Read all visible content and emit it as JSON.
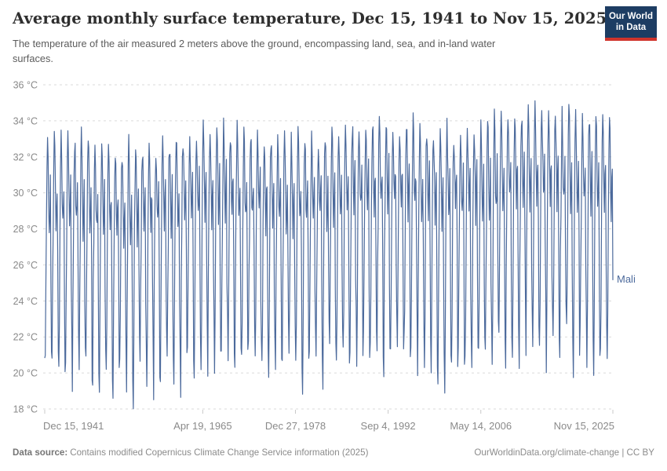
{
  "header": {
    "title": "Average monthly surface temperature, Dec 15, 1941 to Nov 15, 2025",
    "subtitle": "The temperature of the air measured 2 meters above the ground, encompassing land, sea, and in-land water surfaces."
  },
  "logo": {
    "line1": "Our World",
    "line2": "in Data",
    "bg_color": "#1d3d63",
    "accent_color": "#d0342c"
  },
  "chart_data": {
    "type": "line",
    "title": "Average monthly surface temperature, Dec 15, 1941 to Nov 15, 2025",
    "entity": "Mali",
    "unit": "°C",
    "xlabel": "",
    "ylabel": "",
    "grid": true,
    "legend_position": "right-of-line-end",
    "ylim": [
      17.4,
      36.2
    ],
    "y_ticks": [
      18,
      20,
      22,
      24,
      26,
      28,
      30,
      32,
      34,
      36
    ],
    "y_tick_suffix": " °C",
    "x_ticks": [
      {
        "label": "Dec 15, 1941",
        "year": 1941.958
      },
      {
        "label": "Apr 19, 1965",
        "year": 1965.3
      },
      {
        "label": "Dec 27, 1978",
        "year": 1978.99
      },
      {
        "label": "Sep 4, 1992",
        "year": 1992.68
      },
      {
        "label": "May 14, 2006",
        "year": 2006.37
      },
      {
        "label": "Nov 15, 2025",
        "year": 2025.873
      }
    ],
    "series": [
      {
        "name": "Mali",
        "color": "#4C6A9C",
        "start_month": "Dec 1941",
        "end_month": "Nov 2025",
        "points_per_year": 12,
        "n_points": 1008,
        "monthly_climatology_c": [
          19.6,
          23.5,
          27.5,
          31.0,
          32.6,
          31.8,
          29.3,
          27.8,
          29.0,
          30.2,
          25.0,
          21.0
        ],
        "warming_trend_c": 1.7,
        "variability_warm_c": 0.8,
        "variability_cold_c": 1.6,
        "decadal_variability_c": 0.4,
        "observed_min_c": 17.5,
        "observed_max_c": 35.6
      }
    ],
    "axis_color": "#8a8a8a",
    "gridline_color": "#dadada"
  },
  "footer": {
    "datasource_label": "Data source:",
    "datasource_text": "Contains modified Copernicus Climate Change Service information (2025)",
    "attribution": "OurWorldinData.org/climate-change | CC BY"
  }
}
